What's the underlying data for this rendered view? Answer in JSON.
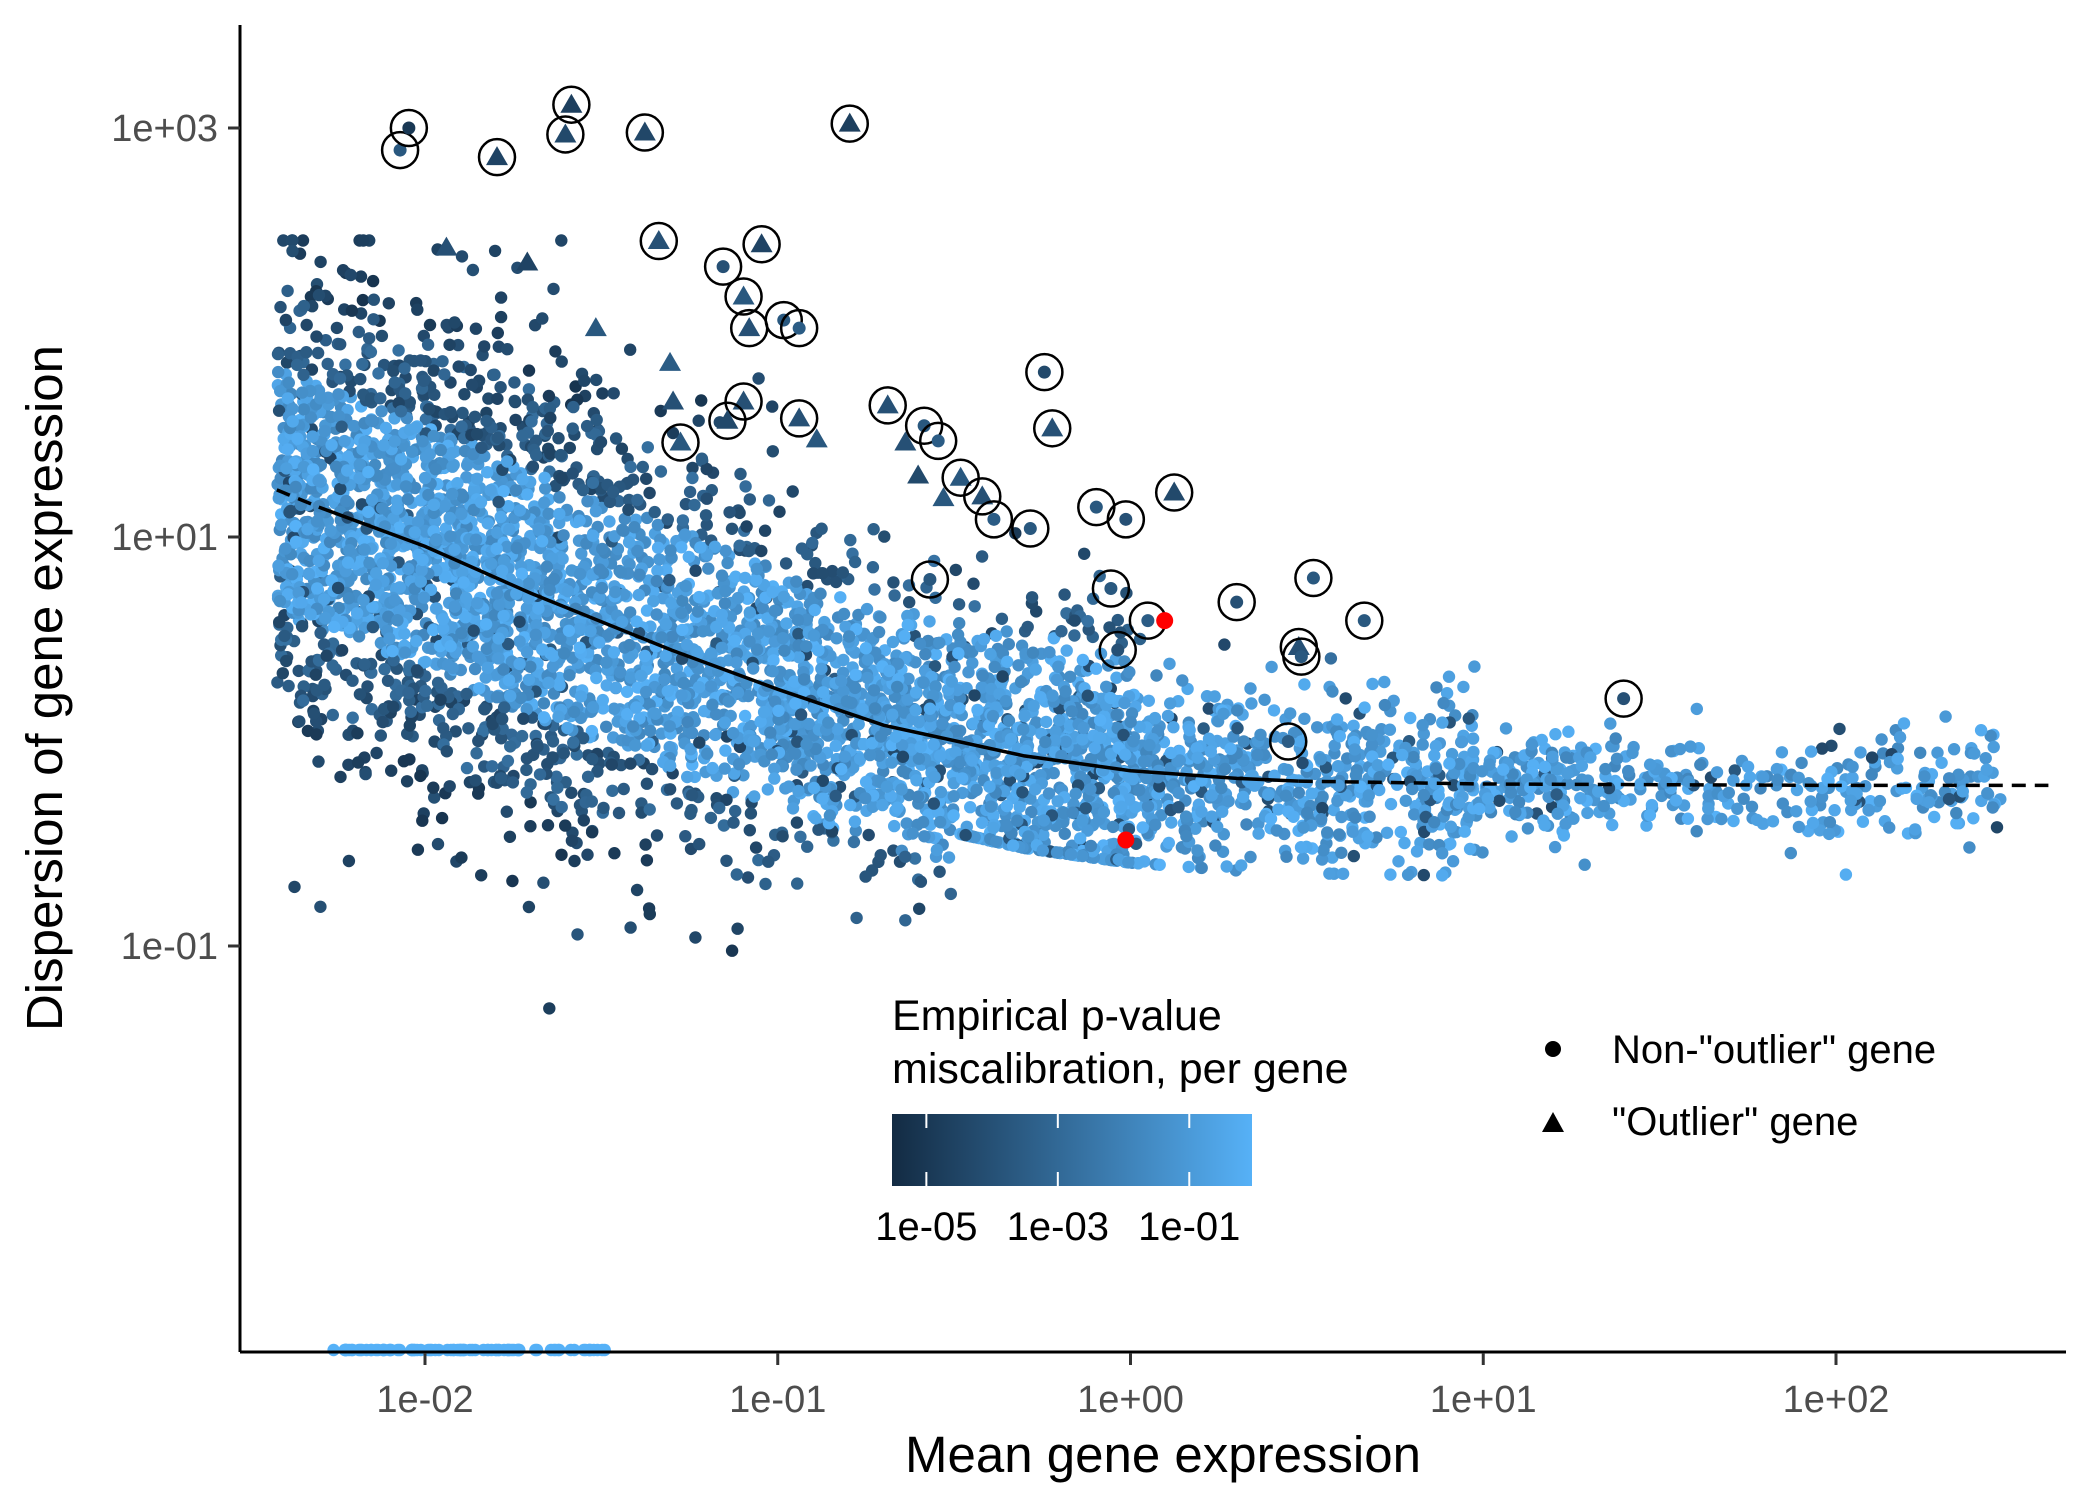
{
  "chart_data": {
    "type": "scatter",
    "xlabel": "Mean gene expression",
    "ylabel": "Dispersion of gene expression",
    "x_scale": "log10",
    "y_scale": "log10",
    "xlim": [
      0.0016,
      700
    ],
    "ylim": [
      0.001,
      6000
    ],
    "x_ticks": [
      {
        "value": 0.01,
        "label": "1e-02"
      },
      {
        "value": 0.1,
        "label": "1e-01"
      },
      {
        "value": 1,
        "label": "1e+00"
      },
      {
        "value": 10,
        "label": "1e+01"
      },
      {
        "value": 100,
        "label": "1e+02"
      }
    ],
    "y_ticks": [
      {
        "value": 0.1,
        "label": "1e-01"
      },
      {
        "value": 10,
        "label": "1e+01"
      },
      {
        "value": 1000,
        "label": "1e+03"
      }
    ],
    "grid": false,
    "color_legend": {
      "title_lines": [
        "Empirical p-value",
        "miscalibration, per gene"
      ],
      "scale": "log10",
      "range": [
        3e-06,
        0.9
      ],
      "low_color": "#132B43",
      "high_color": "#56B1F7",
      "ticks": [
        {
          "value": 1e-05,
          "label": "1e-05"
        },
        {
          "value": 0.001,
          "label": "1e-03"
        },
        {
          "value": 0.1,
          "label": "1e-01"
        }
      ]
    },
    "shape_legend": [
      {
        "shape": "circle",
        "label": "Non-\"outlier\" gene"
      },
      {
        "shape": "triangle",
        "label": "\"Outlier\" gene"
      }
    ],
    "trend_line": {
      "solid": [
        [
          0.005,
          14.0
        ],
        [
          0.01,
          9.0
        ],
        [
          0.02,
          5.3
        ],
        [
          0.05,
          2.8
        ],
        [
          0.1,
          1.8
        ],
        [
          0.2,
          1.2
        ],
        [
          0.5,
          0.85
        ],
        [
          1,
          0.72
        ],
        [
          2,
          0.66
        ],
        [
          3,
          0.64
        ]
      ],
      "dashed_start": [
        [
          0.0038,
          17.0
        ],
        [
          0.005,
          14.0
        ]
      ],
      "dashed_end": [
        [
          3,
          0.64
        ],
        [
          10,
          0.62
        ],
        [
          100,
          0.61
        ],
        [
          400,
          0.61
        ]
      ]
    },
    "highlighted_points": {
      "color": "#FF0000",
      "points": [
        {
          "x": 0.97,
          "y": 0.33
        },
        {
          "x": 1.25,
          "y": 3.9
        }
      ]
    },
    "outlier_genes": [
      {
        "shape": "circle",
        "x": 0.0085,
        "y": 780,
        "p": 0.0002
      },
      {
        "shape": "circle",
        "x": 0.009,
        "y": 1000,
        "p": 1e-05
      },
      {
        "shape": "triangle",
        "x": 0.016,
        "y": 720,
        "p": 3e-05
      },
      {
        "shape": "triangle",
        "x": 0.025,
        "y": 930,
        "p": 5e-05
      },
      {
        "shape": "triangle",
        "x": 0.026,
        "y": 1300,
        "p": 2e-05
      },
      {
        "shape": "triangle",
        "x": 0.042,
        "y": 950,
        "p": 4e-05
      },
      {
        "shape": "triangle",
        "x": 0.046,
        "y": 280,
        "p": 0.0001
      },
      {
        "shape": "triangle",
        "x": 0.16,
        "y": 1050,
        "p": 2e-05
      },
      {
        "shape": "circle",
        "x": 0.07,
        "y": 210,
        "p": 0.0001
      },
      {
        "shape": "triangle",
        "x": 0.09,
        "y": 270,
        "p": 3e-05
      },
      {
        "shape": "triangle",
        "x": 0.08,
        "y": 150,
        "p": 0.0002
      },
      {
        "shape": "triangle",
        "x": 0.083,
        "y": 105,
        "p": 0.0001
      },
      {
        "shape": "circle",
        "x": 0.104,
        "y": 115,
        "p": 0.0002
      },
      {
        "shape": "circle",
        "x": 0.115,
        "y": 105,
        "p": 0.0003
      },
      {
        "shape": "triangle",
        "x": 0.08,
        "y": 46,
        "p": 0.0001
      },
      {
        "shape": "triangle",
        "x": 0.072,
        "y": 37,
        "p": 5e-05
      },
      {
        "shape": "triangle",
        "x": 0.115,
        "y": 38,
        "p": 0.0001
      },
      {
        "shape": "triangle",
        "x": 0.053,
        "y": 29,
        "p": 0.0002
      },
      {
        "shape": "triangle",
        "x": 0.205,
        "y": 44,
        "p": 0.0001
      },
      {
        "shape": "circle",
        "x": 0.26,
        "y": 35,
        "p": 0.0002
      },
      {
        "shape": "circle",
        "x": 0.285,
        "y": 29.5,
        "p": 0.0003
      },
      {
        "shape": "triangle",
        "x": 0.33,
        "y": 19.5,
        "p": 0.0002
      },
      {
        "shape": "triangle",
        "x": 0.38,
        "y": 15.8,
        "p": 0.0001
      },
      {
        "shape": "circle",
        "x": 0.41,
        "y": 12.2,
        "p": 0.0003
      },
      {
        "shape": "circle",
        "x": 0.52,
        "y": 11.0,
        "p": 0.0002
      },
      {
        "shape": "circle",
        "x": 0.57,
        "y": 64,
        "p": 5e-05
      },
      {
        "shape": "triangle",
        "x": 0.6,
        "y": 34,
        "p": 0.0001
      },
      {
        "shape": "circle",
        "x": 0.27,
        "y": 6.2,
        "p": 0.0002
      },
      {
        "shape": "circle",
        "x": 0.8,
        "y": 14.0,
        "p": 0.0002
      },
      {
        "shape": "circle",
        "x": 0.97,
        "y": 12.2,
        "p": 0.0001
      },
      {
        "shape": "triangle",
        "x": 1.33,
        "y": 16.5,
        "p": 5e-05
      },
      {
        "shape": "circle",
        "x": 0.88,
        "y": 5.6,
        "p": 0.0002
      },
      {
        "shape": "circle",
        "x": 1.12,
        "y": 3.9,
        "p": 0.0003
      },
      {
        "shape": "circle",
        "x": 0.92,
        "y": 2.8,
        "p": 0.0001
      },
      {
        "shape": "circle",
        "x": 2.0,
        "y": 4.8,
        "p": 0.0001
      },
      {
        "shape": "circle",
        "x": 3.3,
        "y": 6.3,
        "p": 0.0002
      },
      {
        "shape": "circle",
        "x": 4.6,
        "y": 3.9,
        "p": 0.0002
      },
      {
        "shape": "triangle",
        "x": 3.0,
        "y": 2.9,
        "p": 0.0001
      },
      {
        "shape": "circle",
        "x": 3.05,
        "y": 2.6,
        "p": 0.0002
      },
      {
        "shape": "circle",
        "x": 2.8,
        "y": 1.0,
        "p": 0.0003
      },
      {
        "shape": "circle",
        "x": 25,
        "y": 1.62,
        "p": 0.0001
      }
    ],
    "unmarked_triangles": [
      {
        "x": 0.0115,
        "y": 260,
        "p": 0.0001
      },
      {
        "x": 0.0195,
        "y": 220,
        "p": 3e-05
      },
      {
        "x": 0.0305,
        "y": 105,
        "p": 0.0002
      },
      {
        "x": 0.0495,
        "y": 71,
        "p": 0.0003
      },
      {
        "x": 0.0505,
        "y": 46,
        "p": 0.0001
      },
      {
        "x": 0.129,
        "y": 30,
        "p": 0.0002
      },
      {
        "x": 0.23,
        "y": 29,
        "p": 0.0001
      },
      {
        "x": 0.25,
        "y": 20,
        "p": 5e-05
      },
      {
        "x": 0.295,
        "y": 15.5,
        "p": 0.0002
      }
    ],
    "background_points": {
      "description_note": "",
      "seed": 20240517,
      "count": 5200
    }
  }
}
